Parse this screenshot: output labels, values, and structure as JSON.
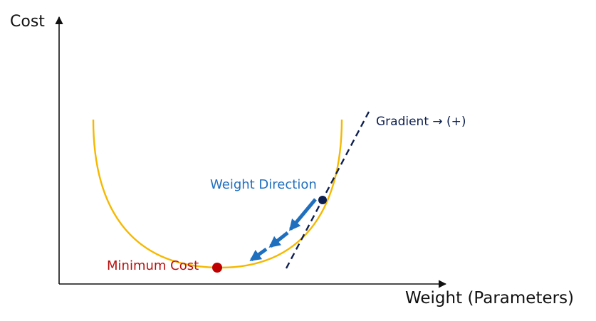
{
  "axes": {
    "y_label": "Cost",
    "x_label": "Weight (Parameters)"
  },
  "labels": {
    "gradient": "Gradient → (+)",
    "weight_direction": "Weight Direction",
    "minimum": "Minimum Cost"
  },
  "colors": {
    "axis": "#111111",
    "curve": "#f5b800",
    "tangent": "#0d1f4f",
    "arrows": "#1f6fbf",
    "minimum_point": "#c00000",
    "current_point": "#0d1f4f"
  }
}
